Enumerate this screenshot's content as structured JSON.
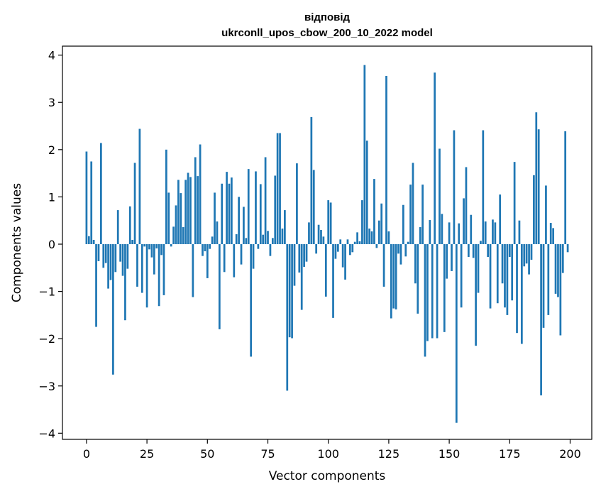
{
  "chart_data": {
    "type": "bar",
    "title": [
      "відповід",
      "ukrconll_upos_cbow_200_10_2022 model"
    ],
    "xlabel": "Vector components",
    "ylabel": "Components values",
    "xlim": [
      -9.95,
      208.95
    ],
    "ylim": [
      -4.13,
      4.19
    ],
    "xticks": [
      0,
      25,
      50,
      75,
      100,
      125,
      150,
      175,
      200
    ],
    "xtick_labels": [
      "0",
      "25",
      "50",
      "75",
      "100",
      "125",
      "150",
      "175",
      "200"
    ],
    "yticks": [
      -4,
      -3,
      -2,
      -1,
      0,
      1,
      2,
      3,
      4
    ],
    "ytick_labels": [
      "−4",
      "−3",
      "−2",
      "−1",
      "0",
      "1",
      "2",
      "3",
      "4"
    ],
    "bar_color": "#1f77b4",
    "x": "0..199",
    "values": [
      1.96,
      0.17,
      1.75,
      0.09,
      -1.75,
      -0.36,
      2.14,
      -0.5,
      -0.4,
      -0.94,
      -0.76,
      -2.76,
      -0.59,
      0.72,
      -0.37,
      -0.67,
      -1.61,
      -0.52,
      0.8,
      0.09,
      1.72,
      -0.9,
      2.44,
      -1.03,
      -0.05,
      -1.34,
      -0.11,
      -0.28,
      -0.64,
      -0.09,
      -1.31,
      -0.23,
      -1.08,
      2.0,
      1.09,
      -0.05,
      0.37,
      0.82,
      1.36,
      1.08,
      0.36,
      1.36,
      1.51,
      1.42,
      -1.12,
      1.84,
      1.44,
      2.11,
      -0.25,
      -0.15,
      -0.72,
      -0.1,
      0.16,
      1.09,
      0.48,
      -1.8,
      1.28,
      -0.59,
      1.53,
      1.28,
      1.41,
      -0.7,
      0.21,
      1.0,
      -0.43,
      0.79,
      0.13,
      1.59,
      -2.38,
      -0.52,
      1.54,
      -0.1,
      1.27,
      0.2,
      1.84,
      0.28,
      -0.25,
      0.13,
      1.45,
      2.35,
      2.35,
      0.33,
      0.72,
      -3.1,
      -1.97,
      -1.99,
      -0.88,
      1.71,
      -0.6,
      -1.39,
      -0.48,
      -0.37,
      0.46,
      2.69,
      1.57,
      -0.2,
      0.41,
      0.3,
      0.16,
      -1.11,
      0.93,
      0.88,
      -1.56,
      -0.31,
      -0.16,
      0.1,
      -0.49,
      -0.75,
      0.1,
      -0.23,
      -0.17,
      0.05,
      0.25,
      0.06,
      0.93,
      3.79,
      2.19,
      0.33,
      0.27,
      1.38,
      -0.08,
      0.5,
      0.86,
      -0.9,
      3.56,
      0.27,
      -1.57,
      -1.36,
      -1.38,
      -0.2,
      -0.43,
      0.83,
      -0.26,
      0.05,
      1.26,
      1.72,
      -0.83,
      -1.47,
      0.36,
      1.26,
      -2.38,
      -2.05,
      0.51,
      -1.99,
      3.63,
      -1.99,
      2.02,
      0.64,
      -1.86,
      -0.73,
      0.46,
      -0.57,
      2.41,
      -3.78,
      0.44,
      -1.34,
      0.97,
      1.63,
      -0.27,
      0.62,
      -0.29,
      -2.15,
      -1.03,
      0.07,
      2.41,
      0.48,
      -0.27,
      -1.36,
      0.52,
      0.46,
      -1.25,
      1.05,
      -0.83,
      -1.34,
      -1.5,
      -0.27,
      -1.19,
      1.74,
      -1.88,
      0.5,
      -2.11,
      -0.47,
      -0.41,
      -0.64,
      -0.33,
      1.46,
      2.79,
      2.43,
      -3.2,
      -1.77,
      1.24,
      -1.5,
      0.45,
      0.34,
      -1.05,
      -1.12,
      -1.93,
      -0.61,
      2.39,
      -0.17
    ]
  }
}
